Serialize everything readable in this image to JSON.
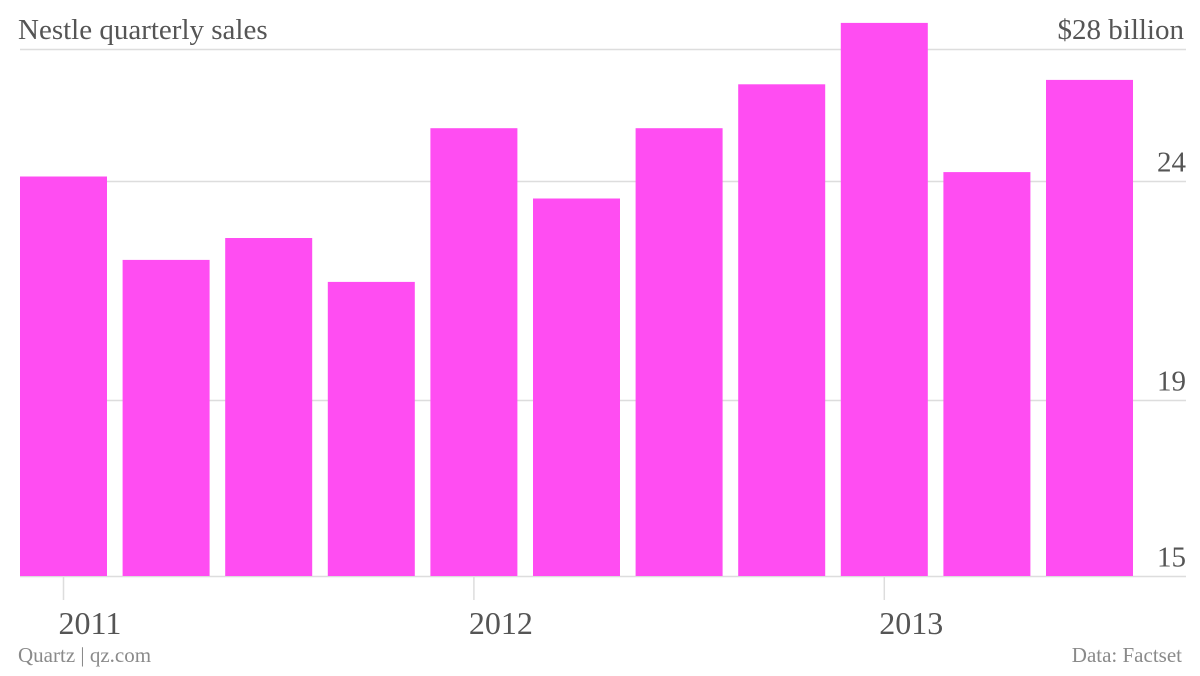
{
  "header": {
    "title": "Nestle quarterly sales",
    "top_tick_label": "$28 billion"
  },
  "footer": {
    "credit": "Quartz | qz.com",
    "source": "Data: Factset"
  },
  "colors": {
    "bar": "#ff4df2",
    "grid": "#dddddd",
    "text": "#555555",
    "muted": "#8a8a8a"
  },
  "chart_data": {
    "type": "bar",
    "title": "Nestle quarterly sales",
    "unit": "$ billion",
    "categories": [
      "Q1 2011",
      "Q2 2011",
      "Q3 2011",
      "Q4 2011",
      "Q1 2012",
      "Q2 2012",
      "Q3 2012",
      "Q4 2012",
      "Q1 2013",
      "Q2 2013",
      "Q3 2013"
    ],
    "values": [
      24.1,
      22.2,
      22.7,
      21.7,
      25.2,
      23.6,
      25.2,
      26.2,
      27.6,
      24.2,
      26.3
    ],
    "x_tick_labels": [
      {
        "label": "2011",
        "index": 0
      },
      {
        "label": "2012",
        "index": 4
      },
      {
        "label": "2013",
        "index": 8
      }
    ],
    "y_ticks": [
      {
        "value": 15,
        "label": "15"
      },
      {
        "value": 19,
        "label": "19"
      },
      {
        "value": 24,
        "label": "24"
      },
      {
        "value": 28,
        "label": "$28 billion"
      }
    ],
    "ylim": [
      15,
      28.5
    ],
    "grid": true,
    "y_axis_side": "right"
  }
}
